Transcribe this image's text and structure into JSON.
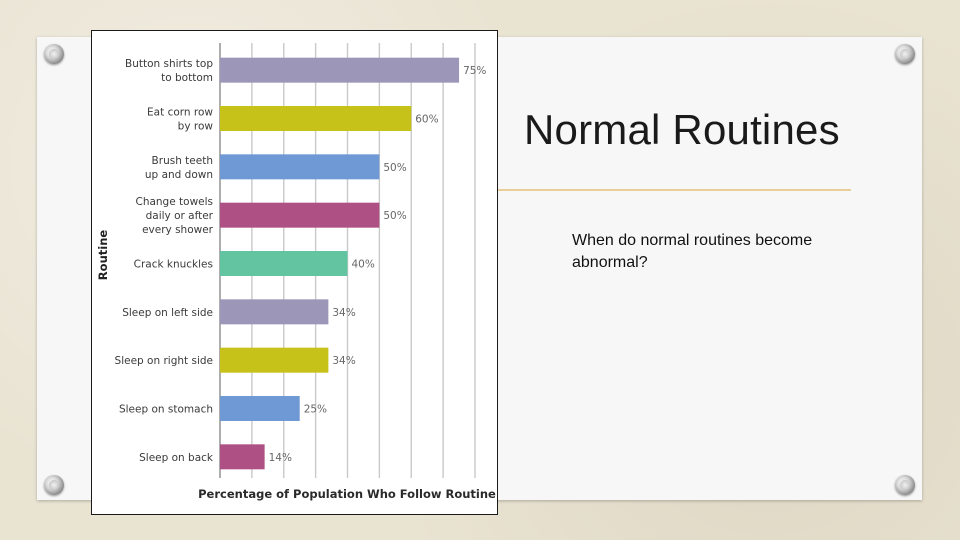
{
  "slide": {
    "title": "Normal Routines",
    "body": "When do normal routines become abnormal?"
  },
  "chart_data": {
    "type": "bar",
    "orientation": "horizontal",
    "title": "",
    "xlabel": "Percentage of Population Who Follow Routine",
    "ylabel": "Routine",
    "xlim": [
      0,
      80
    ],
    "grid": true,
    "categories": [
      [
        "Button shirts top",
        "to bottom"
      ],
      [
        "Eat corn row",
        "by row"
      ],
      [
        "Brush teeth",
        "up and down"
      ],
      [
        "Change towels",
        "daily or after",
        "every shower"
      ],
      [
        "Crack knuckles"
      ],
      [
        "Sleep on left side"
      ],
      [
        "Sleep on right side"
      ],
      [
        "Sleep on stomach"
      ],
      [
        "Sleep on back"
      ]
    ],
    "values": [
      75,
      60,
      50,
      50,
      40,
      34,
      34,
      25,
      14
    ],
    "value_labels": [
      "75%",
      "60%",
      "50%",
      "50%",
      "40%",
      "34%",
      "34%",
      "25%",
      "14%"
    ],
    "colors": [
      "#9c97b9",
      "#c6c21a",
      "#6f99d4",
      "#ae5083",
      "#63c4a1",
      "#9c97b9",
      "#c6c21a",
      "#6f99d4",
      "#ae5083"
    ]
  }
}
